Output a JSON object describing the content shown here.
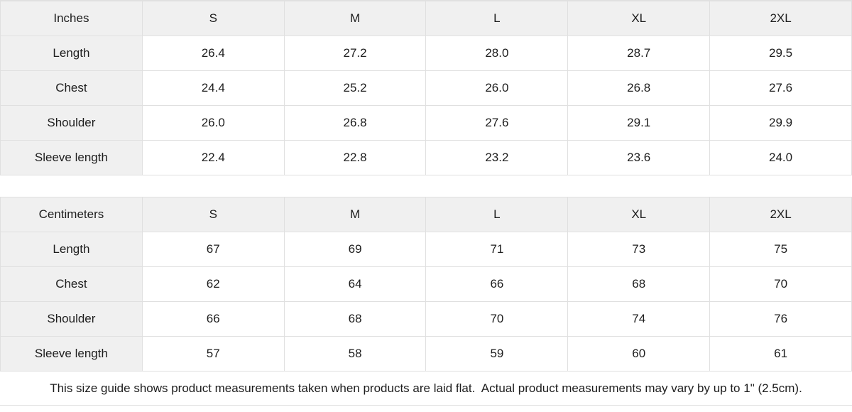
{
  "colors": {
    "header_bg": "#f0f0f0",
    "border": "#e0e0e0",
    "cell_bg": "#ffffff",
    "text": "#1d1d1d"
  },
  "tables": [
    {
      "unit_label": "Inches",
      "columns": [
        "S",
        "M",
        "L",
        "XL",
        "2XL"
      ],
      "rows": [
        {
          "label": "Length",
          "values": [
            "26.4",
            "27.2",
            "28.0",
            "28.7",
            "29.5"
          ]
        },
        {
          "label": "Chest",
          "values": [
            "24.4",
            "25.2",
            "26.0",
            "26.8",
            "27.6"
          ]
        },
        {
          "label": "Shoulder",
          "values": [
            "26.0",
            "26.8",
            "27.6",
            "29.1",
            "29.9"
          ]
        },
        {
          "label": "Sleeve length",
          "values": [
            "22.4",
            "22.8",
            "23.2",
            "23.6",
            "24.0"
          ]
        }
      ]
    },
    {
      "unit_label": "Centimeters",
      "columns": [
        "S",
        "M",
        "L",
        "XL",
        "2XL"
      ],
      "rows": [
        {
          "label": "Length",
          "values": [
            "67",
            "69",
            "71",
            "73",
            "75"
          ]
        },
        {
          "label": "Chest",
          "values": [
            "62",
            "64",
            "66",
            "68",
            "70"
          ]
        },
        {
          "label": "Shoulder",
          "values": [
            "66",
            "68",
            "70",
            "74",
            "76"
          ]
        },
        {
          "label": "Sleeve length",
          "values": [
            "57",
            "58",
            "59",
            "60",
            "61"
          ]
        }
      ]
    }
  ],
  "footer": {
    "note": "This size guide shows product measurements taken when products are laid flat.  Actual product measurements may vary by up to 1\" (2.5cm)."
  }
}
